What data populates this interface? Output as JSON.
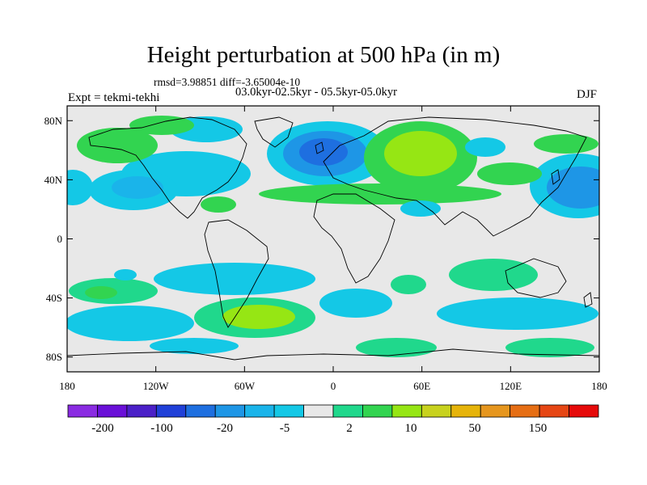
{
  "title": "Height perturbation at 500 hPa (in m)",
  "stats": {
    "rmsd_label": "rmsd=",
    "rmsd": "3.98851",
    "diff_label": "diff=",
    "diff": "-3.65004e-10"
  },
  "period": "03.0kyr-02.5kyr - 05.5kyr-05.0kyr",
  "experiment": "Expt = tekmi-tekhi",
  "season": "DJF",
  "map": {
    "lon_range": [
      -180,
      180
    ],
    "lat_range": [
      -90,
      90
    ],
    "y_ticks": [
      "80N",
      "40N",
      "0",
      "40S",
      "80S"
    ],
    "y_tick_values": [
      80,
      40,
      0,
      -40,
      -80
    ],
    "x_ticks": [
      "180",
      "120W",
      "60W",
      "0",
      "60E",
      "120E",
      "180"
    ],
    "x_tick_values": [
      -180,
      -120,
      -60,
      0,
      60,
      120,
      180
    ],
    "background_color": "#e8e8e8",
    "coastline_color": "#000000"
  },
  "anomalies": [
    {
      "lon": 0,
      "lat": 60,
      "value": -40
    },
    {
      "lon": -120,
      "lat": 40,
      "value": -20
    },
    {
      "lon": 160,
      "lat": 38,
      "value": -30
    },
    {
      "lon": 55,
      "lat": 62,
      "value": 14
    },
    {
      "lon": -160,
      "lat": 60,
      "value": 6
    },
    {
      "lon": -40,
      "lat": -55,
      "value": 16
    },
    {
      "lon": 100,
      "lat": -45,
      "value": -8
    },
    {
      "lon": -130,
      "lat": -55,
      "value": -8
    }
  ],
  "colorbar": {
    "colors": [
      "#8a2be2",
      "#6a10d8",
      "#4b20c8",
      "#2040d8",
      "#1e6fe0",
      "#1e96e6",
      "#1ab4ea",
      "#14c8e6",
      "#e8e8e8",
      "#20d88c",
      "#32d450",
      "#96e614",
      "#c8d21e",
      "#e6b40a",
      "#e6961e",
      "#e66e14",
      "#e64614",
      "#e60a0a"
    ],
    "labels": [
      "-200",
      "-100",
      "-20",
      "-5",
      "2",
      "10",
      "50",
      "150"
    ]
  }
}
